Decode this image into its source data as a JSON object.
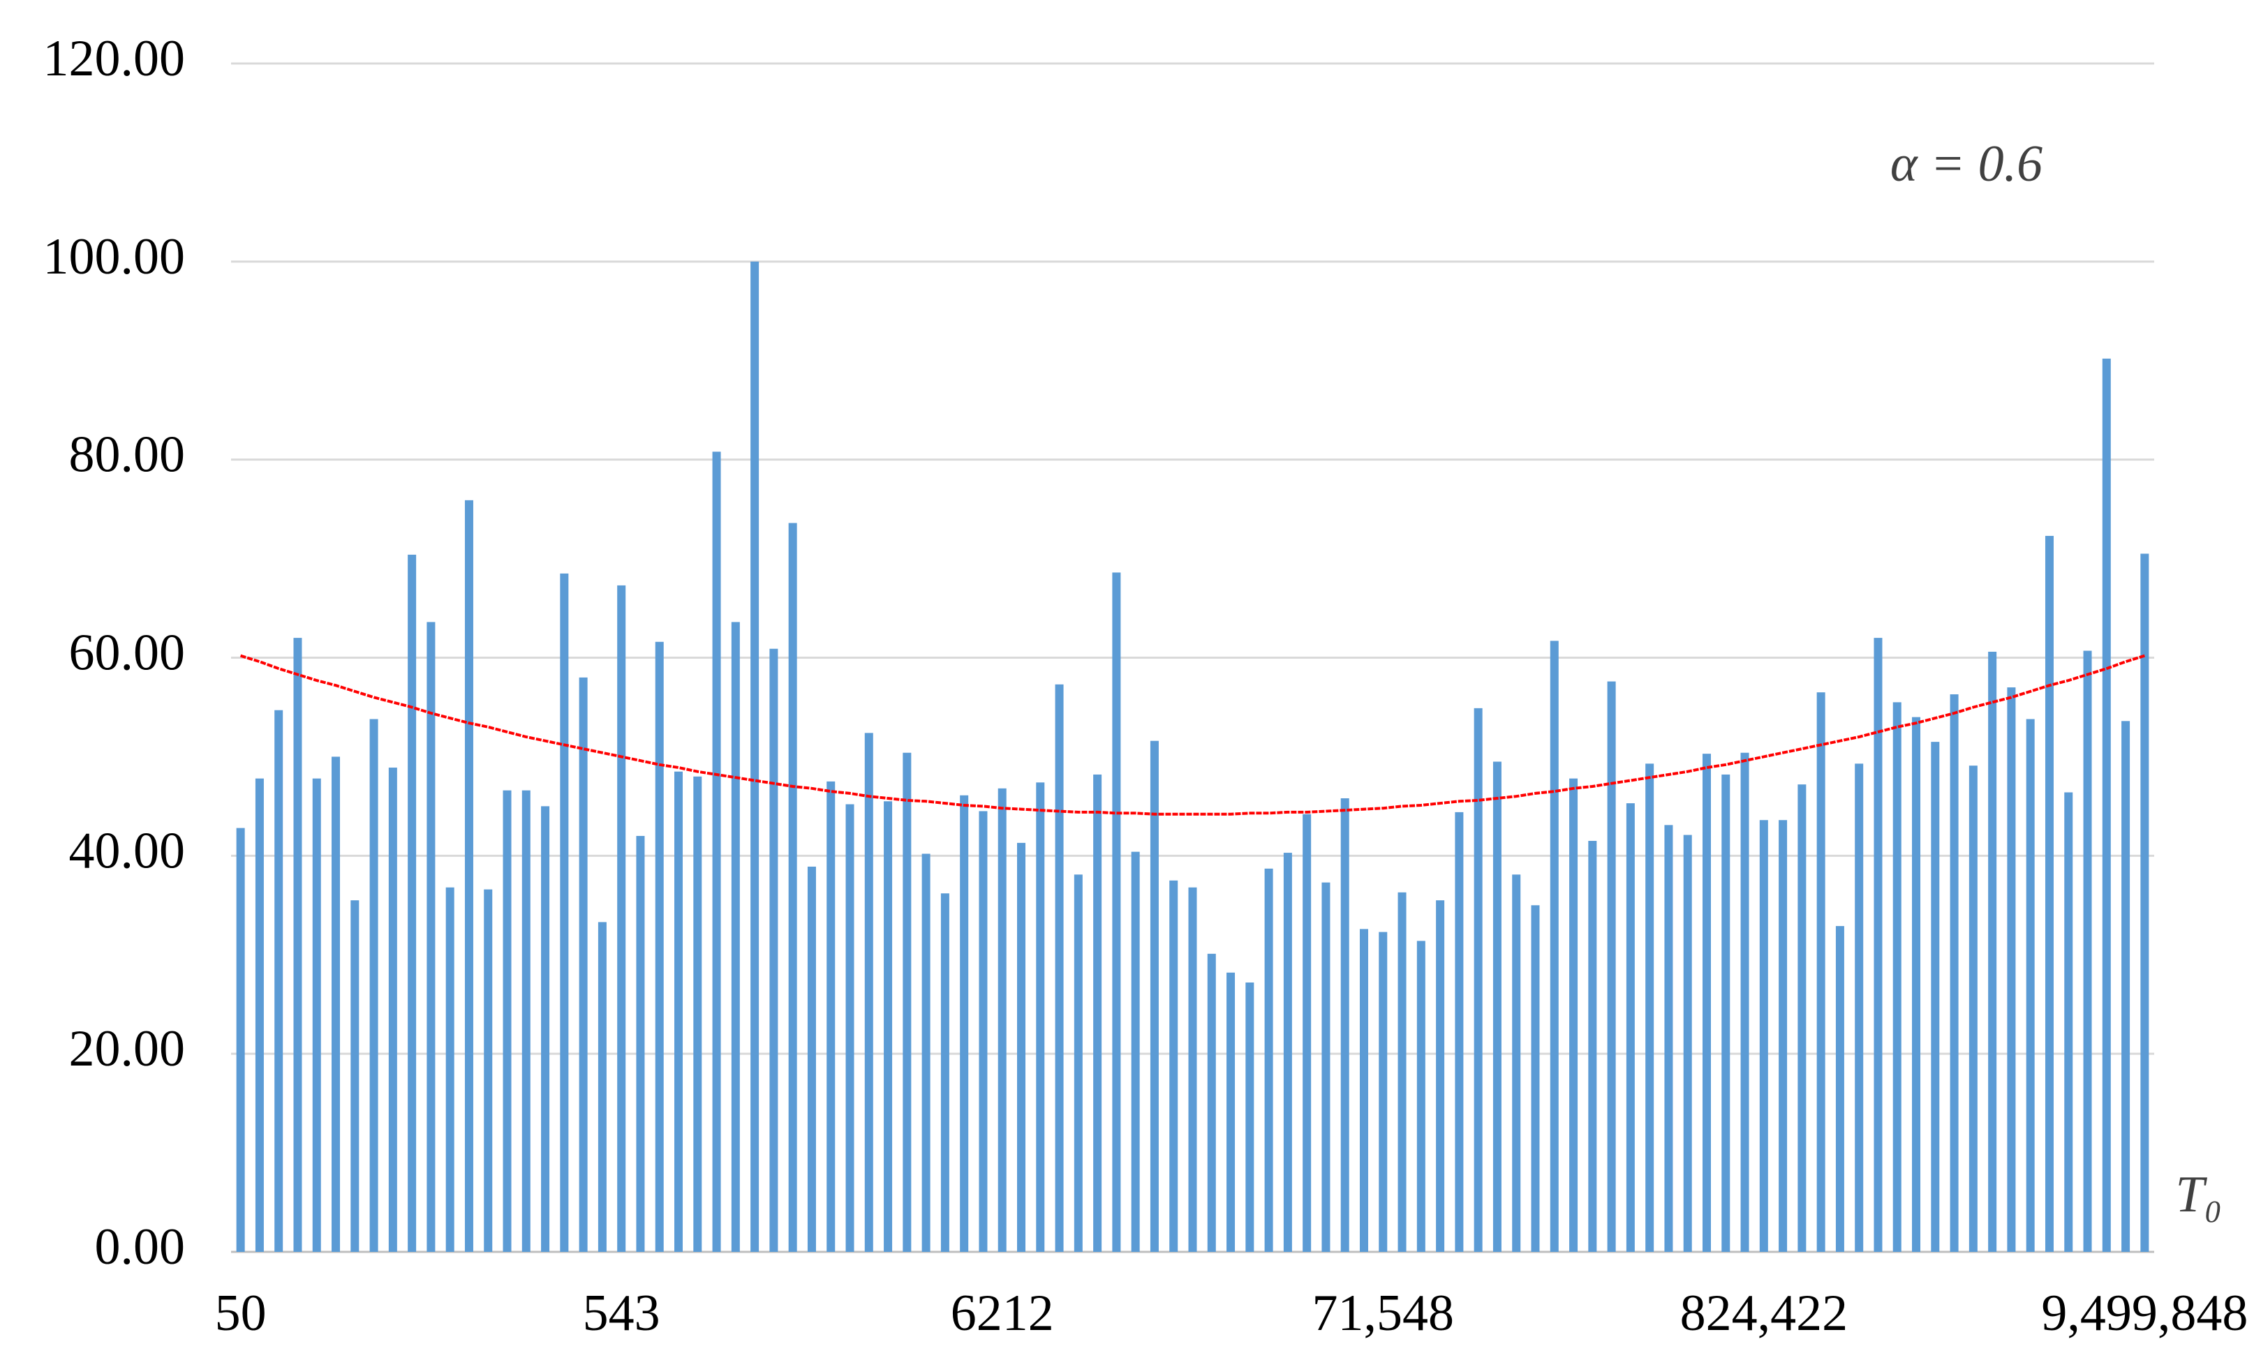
{
  "chart_data": {
    "type": "bar",
    "annotation": "α = 0.6",
    "x_label": "T₀",
    "categories": [
      "50",
      null,
      null,
      null,
      null,
      null,
      null,
      null,
      null,
      null,
      null,
      null,
      null,
      null,
      null,
      null,
      null,
      null,
      null,
      null,
      "543",
      null,
      null,
      null,
      null,
      null,
      null,
      null,
      null,
      null,
      null,
      null,
      null,
      null,
      null,
      null,
      null,
      null,
      null,
      null,
      "6212",
      null,
      null,
      null,
      null,
      null,
      null,
      null,
      null,
      null,
      null,
      null,
      null,
      null,
      null,
      null,
      null,
      null,
      null,
      null,
      "71,548",
      null,
      null,
      null,
      null,
      null,
      null,
      null,
      null,
      null,
      null,
      null,
      null,
      null,
      null,
      null,
      null,
      null,
      null,
      null,
      "824,422",
      null,
      null,
      null,
      null,
      null,
      null,
      null,
      null,
      null,
      null,
      null,
      null,
      null,
      null,
      null,
      null,
      null,
      null,
      null,
      "9,499,848"
    ],
    "series": [
      {
        "type": "bar",
        "color": "#5b9bd5",
        "values": [
          42.8,
          47.8,
          54.7,
          62,
          47.8,
          50,
          35.5,
          53.8,
          48.9,
          70.4,
          63.6,
          36.8,
          75.9,
          36.6,
          46.6,
          46.6,
          45,
          68.5,
          58,
          33.3,
          67.3,
          42,
          61.6,
          48.5,
          48,
          80.8,
          63.6,
          100,
          60.9,
          73.6,
          38.9,
          47.5,
          45.2,
          52.4,
          45.5,
          50.4,
          40.2,
          36.2,
          46.1,
          44.5,
          46.8,
          41.3,
          47.4,
          57.3,
          38.1,
          48.2,
          68.6,
          40.4,
          51.6,
          37.5,
          36.8,
          30.1,
          28.2,
          27.2,
          38.7,
          40.3,
          44.2,
          37.3,
          45.8,
          32.6,
          32.3,
          36.3,
          31.4,
          35.5,
          44.4,
          54.9,
          49.5,
          38.1,
          35,
          61.7,
          47.8,
          41.5,
          57.6,
          45.3,
          49.3,
          43.1,
          42.1,
          50.3,
          48.2,
          50.4,
          43.6,
          43.6,
          47.2,
          56.5,
          32.9,
          49.3,
          62,
          55.5,
          54,
          51.5,
          56.3,
          49.1,
          60.6,
          57,
          53.8,
          72.3,
          46.4,
          60.7,
          90.2,
          53.6,
          70.5
        ]
      },
      {
        "type": "line",
        "color": "#ff0000",
        "values": [
          60.2,
          59.6,
          58.9,
          58.3,
          57.7,
          57.2,
          56.6,
          56,
          55.5,
          55,
          54.4,
          53.9,
          53.4,
          53,
          52.5,
          52,
          51.6,
          51.2,
          50.8,
          50.4,
          50,
          49.6,
          49.2,
          48.9,
          48.5,
          48.2,
          47.9,
          47.6,
          47.3,
          47,
          46.8,
          46.5,
          46.3,
          46,
          45.8,
          45.6,
          45.5,
          45.3,
          45.1,
          45,
          44.8,
          44.7,
          44.6,
          44.5,
          44.4,
          44.4,
          44.3,
          44.3,
          44.2,
          44.2,
          44.2,
          44.2,
          44.2,
          44.3,
          44.3,
          44.4,
          44.4,
          44.5,
          44.6,
          44.7,
          44.8,
          45,
          45.1,
          45.3,
          45.5,
          45.6,
          45.8,
          46,
          46.3,
          46.5,
          46.8,
          47,
          47.3,
          47.6,
          47.9,
          48.2,
          48.5,
          48.9,
          49.2,
          49.6,
          50,
          50.4,
          50.8,
          51.2,
          51.6,
          52,
          52.5,
          53,
          53.4,
          53.9,
          54.4,
          55,
          55.5,
          56,
          56.6,
          57.2,
          57.7,
          58.3,
          58.9,
          59.6,
          60.2
        ]
      }
    ],
    "ylim": [
      0,
      120
    ],
    "yticks": [
      {
        "value": 0,
        "label": "0.00"
      },
      {
        "value": 20,
        "label": "20.00"
      },
      {
        "value": 40,
        "label": "40.00"
      },
      {
        "value": 60,
        "label": "60.00"
      },
      {
        "value": 80,
        "label": "80.00"
      },
      {
        "value": 100,
        "label": "100.00"
      },
      {
        "value": 120,
        "label": "120.00"
      }
    ],
    "grid": true
  }
}
